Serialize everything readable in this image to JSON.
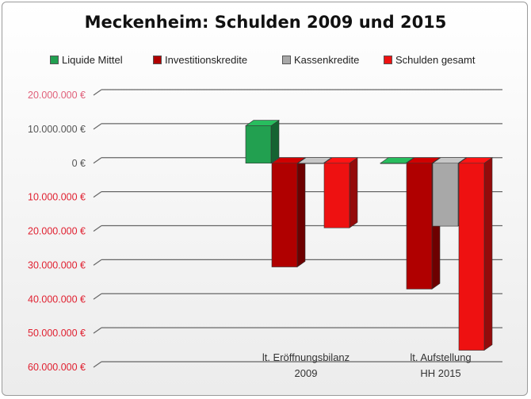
{
  "chart_data": {
    "type": "bar",
    "title": "Meckenheim: Schulden 2009 und 2015",
    "categories": [
      [
        "lt. Eröffnungsbilanz",
        "2009"
      ],
      [
        "lt. Aufstellung",
        "HH 2015"
      ]
    ],
    "series": [
      {
        "name": "Liquide Mittel",
        "color": "#22a050",
        "values": [
          11000000,
          0
        ]
      },
      {
        "name": "Investitionskredite",
        "color": "#b00000",
        "values": [
          -30500000,
          -37000000
        ]
      },
      {
        "name": "Kassenkredite",
        "color": "#a8a8a8",
        "values": [
          0,
          -18500000
        ]
      },
      {
        "name": "Schulden gesamt",
        "color": "#ee1111",
        "values": [
          -19000000,
          -55000000
        ]
      }
    ],
    "ylim": [
      -60000000,
      20000000
    ],
    "yticks": [
      {
        "value": 20000000,
        "label": "20.000.000 €",
        "color": "#e0607a"
      },
      {
        "value": 10000000,
        "label": "10.000.000 €",
        "color": "#555555"
      },
      {
        "value": 0,
        "label": "0 €",
        "color": "#555555"
      },
      {
        "value": -10000000,
        "label": "10.000.000 €",
        "color": "#e02030"
      },
      {
        "value": -20000000,
        "label": "20.000.000 €",
        "color": "#e02030"
      },
      {
        "value": -30000000,
        "label": "30.000.000 €",
        "color": "#e02030"
      },
      {
        "value": -40000000,
        "label": "40.000.000 €",
        "color": "#e02030"
      },
      {
        "value": -50000000,
        "label": "50.000.000 €",
        "color": "#e02030"
      },
      {
        "value": -60000000,
        "label": "60.000.000 €",
        "color": "#e02030"
      }
    ],
    "grid": true,
    "legend": "top",
    "style": "3d-column"
  }
}
